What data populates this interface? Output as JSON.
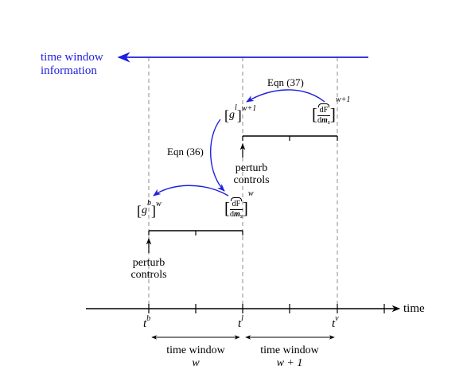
{
  "header": {
    "line1": "time window",
    "line2": "information",
    "color": "#1f1fdc"
  },
  "axis": {
    "label": "time",
    "t_b": {
      "base": "t",
      "sup": "b"
    },
    "t_l": {
      "base": "t",
      "sup": "l"
    },
    "t_v": {
      "base": "t",
      "sup": "v"
    }
  },
  "windows": [
    {
      "line1": "time window",
      "line2": "w"
    },
    {
      "line1": "time window",
      "line2": "w + 1"
    }
  ],
  "equations": {
    "eqn36": "Eqn (36)",
    "eqn37": "Eqn (37)"
  },
  "perturb": [
    {
      "line1": "perturb",
      "line2": "controls"
    },
    {
      "line1": "perturb",
      "line2": "controls"
    }
  ],
  "math": {
    "g_base": "g",
    "g_b_sub": "b",
    "g_l_sub": "l",
    "exp_w": "w",
    "exp_w1": "w+1",
    "dF_num": "dF",
    "dm_den_d": "d",
    "dm_den_m": "m",
    "dm_den_s": "s"
  },
  "colors": {
    "blue": "#1f1fdc",
    "dashed": "#a0a0a0",
    "black": "#000000"
  }
}
